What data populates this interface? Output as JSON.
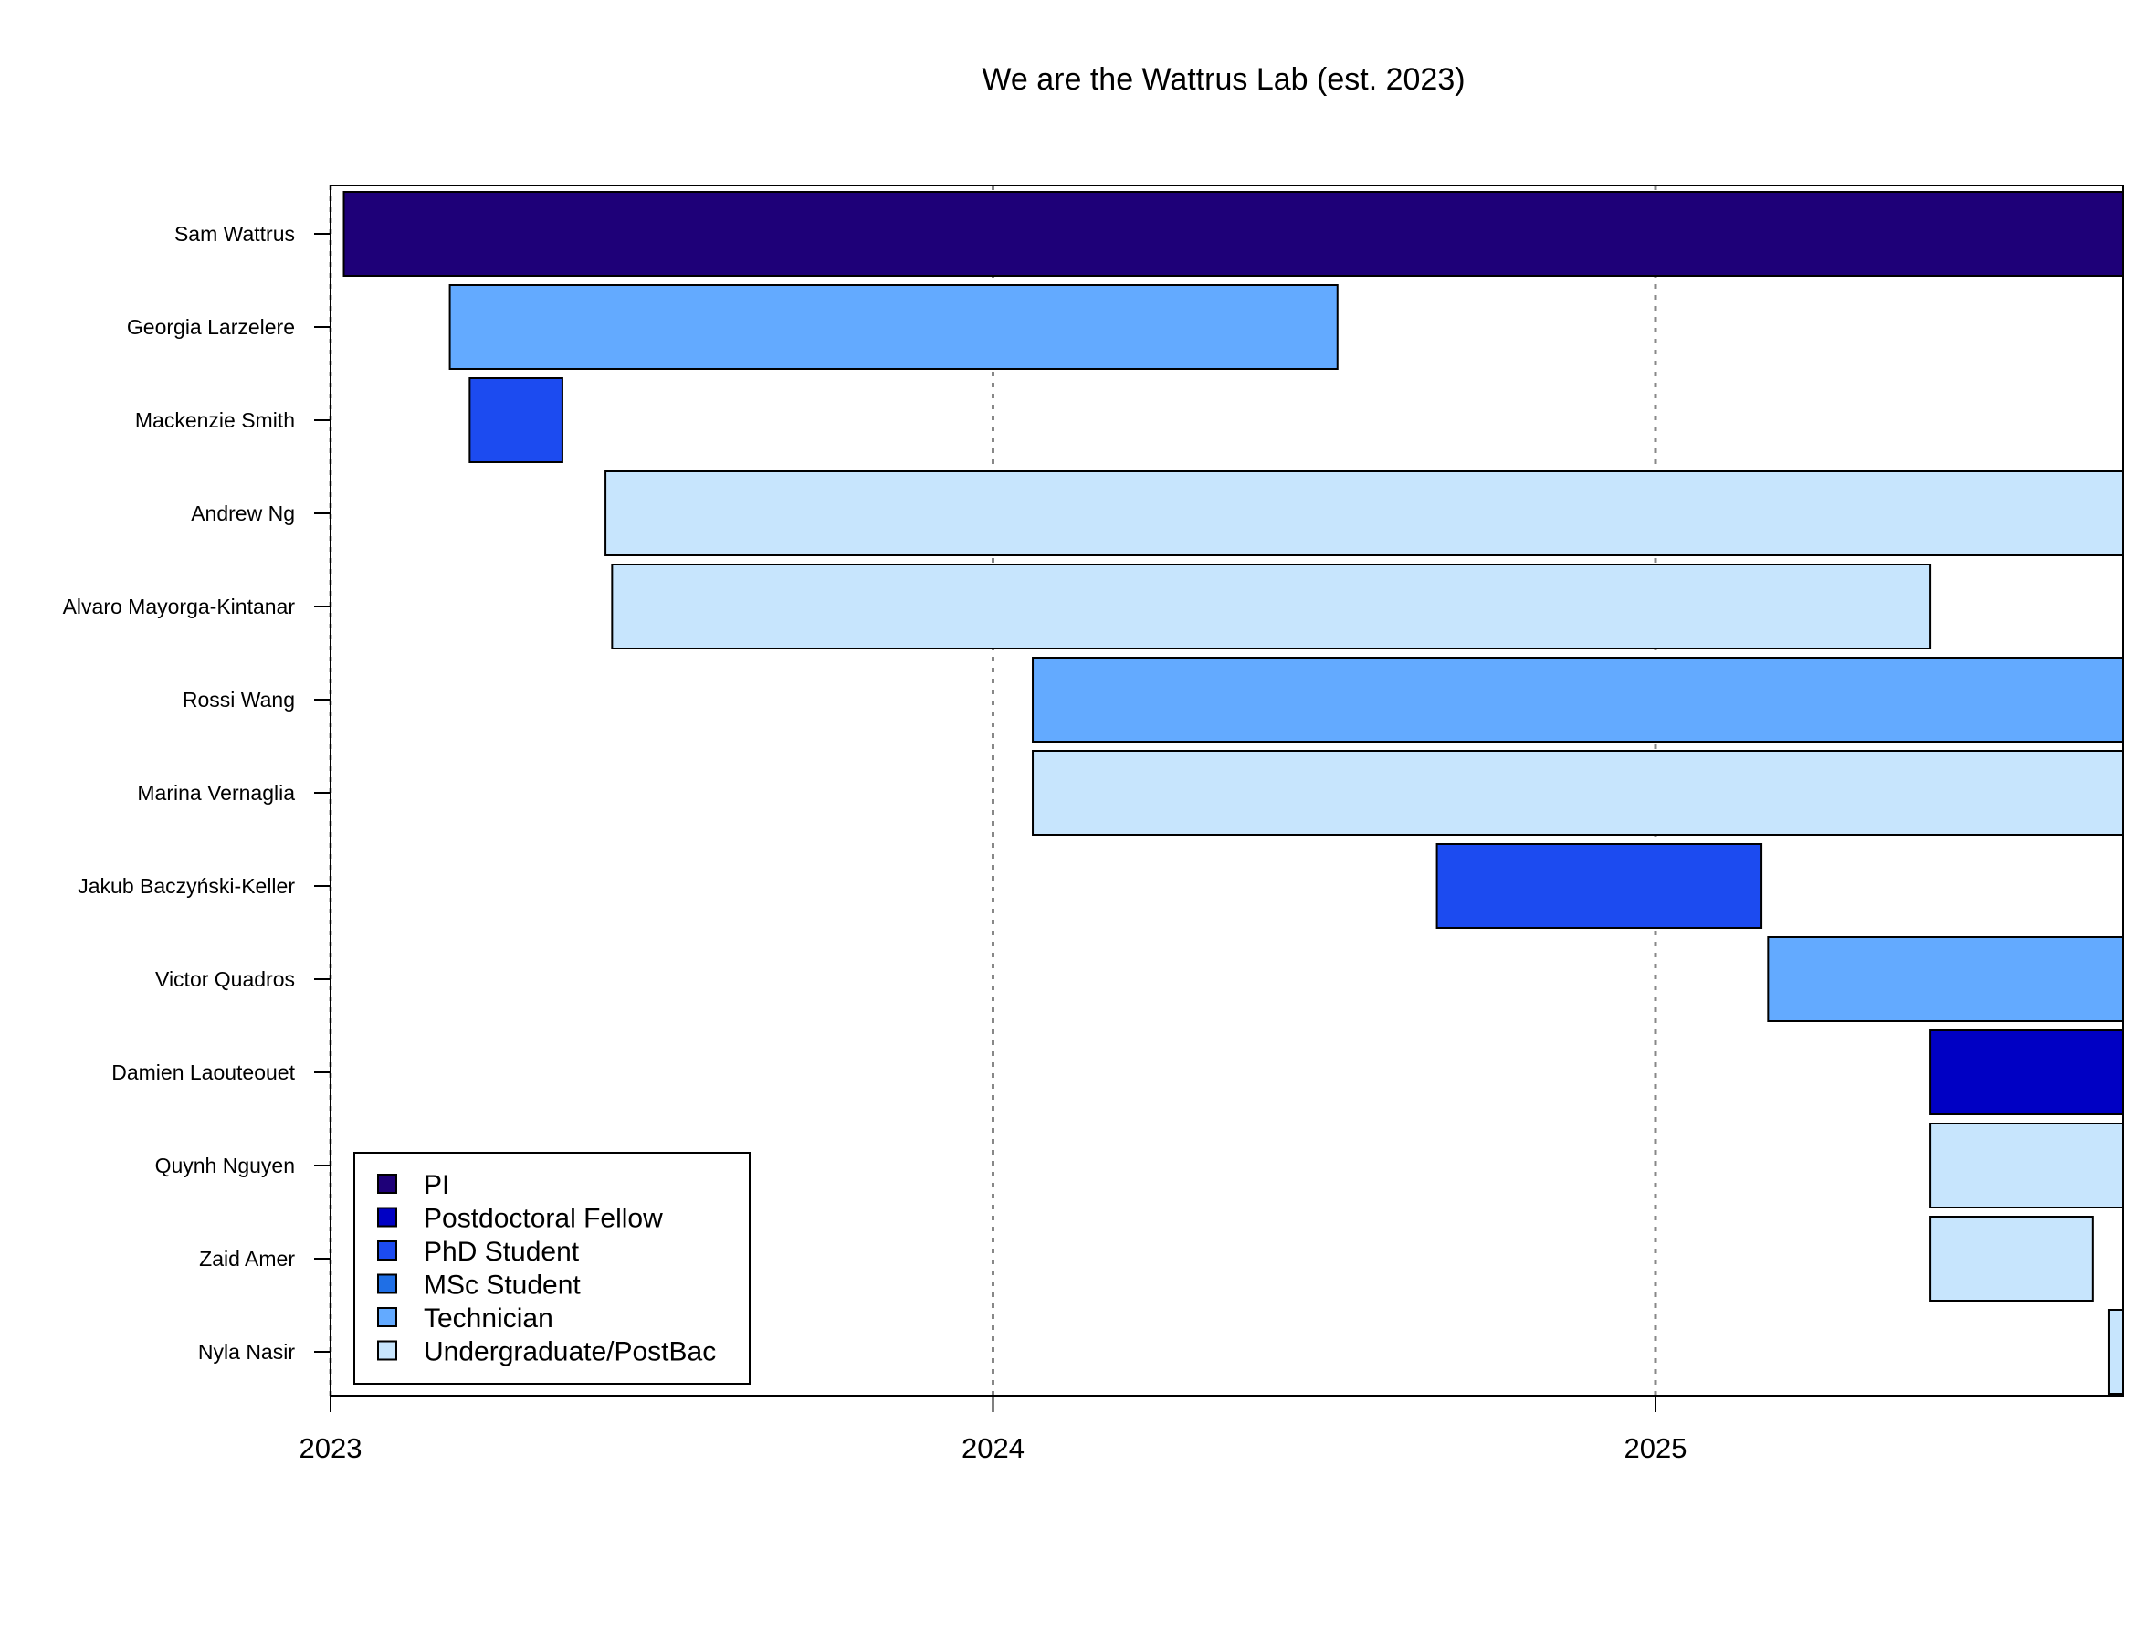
{
  "chart_data": {
    "type": "gantt",
    "title": "We are the Wattrus Lab (est. 2023)",
    "xlabel": "",
    "ylabel": "",
    "xlim": [
      2023.0,
      2025.71
    ],
    "xticks": [
      "2023",
      "2024",
      "2025"
    ],
    "xtick_values": [
      2023,
      2024,
      2025
    ],
    "grid": "vertical dotted at year ticks",
    "legend_position": "bottom-left",
    "roles": [
      {
        "name": "PI",
        "color": "#1e0078"
      },
      {
        "name": "Postdoctoral Fellow",
        "color": "#0000c4"
      },
      {
        "name": "PhD Student",
        "color": "#1c4bf0"
      },
      {
        "name": "MSc Student",
        "color": "#1f6fe6"
      },
      {
        "name": "Technician",
        "color": "#63aaff"
      },
      {
        "name": "Undergraduate/PostBac",
        "color": "#c7e5fd"
      }
    ],
    "members": [
      {
        "name": "Sam Wattrus",
        "role": "PI",
        "start": 2023.02,
        "end": 2025.71
      },
      {
        "name": "Georgia Larzelere",
        "role": "Technician",
        "start": 2023.18,
        "end": 2024.52
      },
      {
        "name": "Mackenzie Smith",
        "role": "PhD Student",
        "start": 2023.21,
        "end": 2023.35
      },
      {
        "name": "Andrew Ng",
        "role": "Undergraduate/PostBac",
        "start": 2023.415,
        "end": 2025.71
      },
      {
        "name": "Alvaro Mayorga-Kintanar",
        "role": "Undergraduate/PostBac",
        "start": 2023.425,
        "end": 2025.415
      },
      {
        "name": "Rossi Wang",
        "role": "Technician",
        "start": 2024.06,
        "end": 2025.71
      },
      {
        "name": "Marina Vernaglia",
        "role": "Undergraduate/PostBac",
        "start": 2024.06,
        "end": 2025.71
      },
      {
        "name": "Jakub Baczyński-Keller",
        "role": "PhD Student",
        "start": 2024.67,
        "end": 2025.16
      },
      {
        "name": "Victor Quadros",
        "role": "Technician",
        "start": 2025.17,
        "end": 2025.71
      },
      {
        "name": "Damien Laouteouet",
        "role": "Postdoctoral Fellow",
        "start": 2025.415,
        "end": 2025.71
      },
      {
        "name": "Quynh Nguyen",
        "role": "Undergraduate/PostBac",
        "start": 2025.415,
        "end": 2025.71
      },
      {
        "name": "Zaid Amer",
        "role": "Undergraduate/PostBac",
        "start": 2025.415,
        "end": 2025.66
      },
      {
        "name": "Nyla Nasir",
        "role": "Undergraduate/PostBac",
        "start": 2025.685,
        "end": 2025.71
      }
    ]
  }
}
